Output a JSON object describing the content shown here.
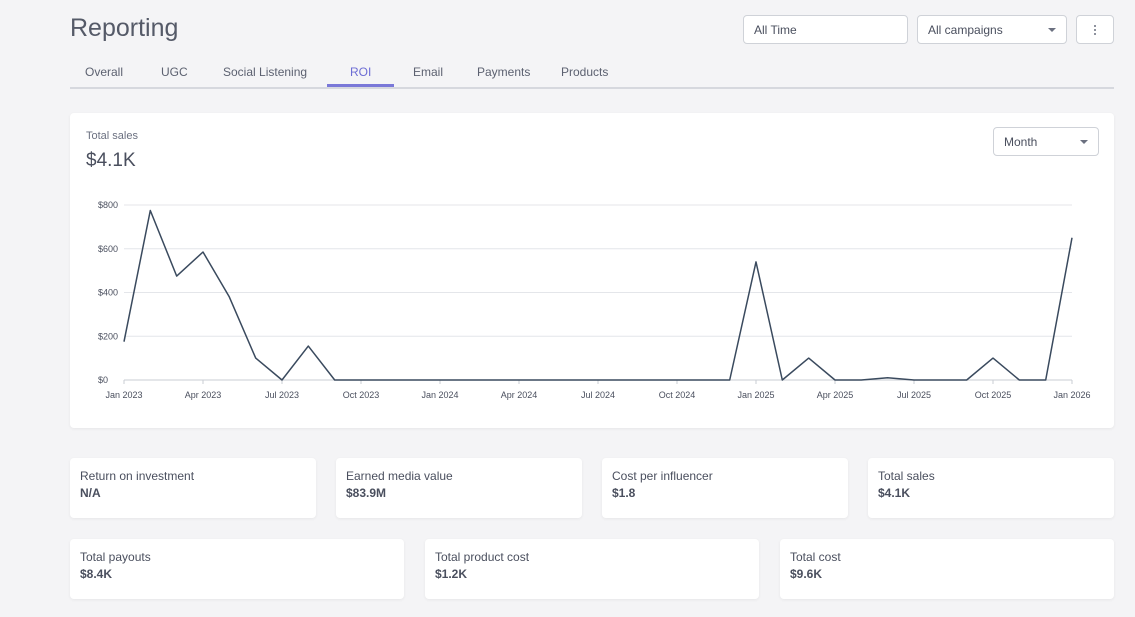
{
  "header": {
    "title": "Reporting",
    "time_filter": "All Time",
    "campaign_filter": "All campaigns",
    "more_icon": "vertical-dots-icon"
  },
  "tabs": [
    {
      "label": "Overall"
    },
    {
      "label": "UGC"
    },
    {
      "label": "Social Listening"
    },
    {
      "label": "ROI",
      "active": true
    },
    {
      "label": "Email"
    },
    {
      "label": "Payments"
    },
    {
      "label": "Products"
    }
  ],
  "colors": {
    "accent": "#7a78d8",
    "line": "#3a4a5e",
    "grid": "#e4e6ea"
  },
  "chart_card": {
    "label": "Total sales",
    "value": "$4.1K",
    "period": "Month"
  },
  "chart_data": {
    "type": "line",
    "title": "",
    "xlabel": "",
    "ylabel": "",
    "ylim": [
      0,
      800
    ],
    "grid": true,
    "yticks": [
      "$0",
      "$200",
      "$400",
      "$600",
      "$800"
    ],
    "ytick_values": [
      0,
      200,
      400,
      600,
      800
    ],
    "xtick_labels": [
      "Jan 2023",
      "Apr 2023",
      "Jul 2023",
      "Oct 2023",
      "Jan 2024",
      "Apr 2024",
      "Jul 2024",
      "Oct 2024",
      "Jan 2025",
      "Apr 2025",
      "Jul 2025",
      "Oct 2025",
      "Jan 2026"
    ],
    "xtick_indices": [
      0,
      3,
      6,
      9,
      12,
      15,
      18,
      21,
      24,
      27,
      30,
      33,
      36
    ],
    "series": [
      {
        "values": [
          175,
          775,
          475,
          585,
          380,
          100,
          0,
          155,
          0,
          0,
          0,
          0,
          0,
          0,
          0,
          0,
          0,
          0,
          0,
          0,
          0,
          0,
          0,
          0,
          540,
          0,
          100,
          0,
          0,
          10,
          0,
          0,
          0,
          100,
          0,
          0,
          650
        ]
      }
    ]
  },
  "metrics_row1": [
    {
      "label": "Return on investment",
      "value": "N/A"
    },
    {
      "label": "Earned media value",
      "value": "$83.9M"
    },
    {
      "label": "Cost per influencer",
      "value": "$1.8"
    },
    {
      "label": "Total sales",
      "value": "$4.1K"
    }
  ],
  "metrics_row2": [
    {
      "label": "Total payouts",
      "value": "$8.4K"
    },
    {
      "label": "Total product cost",
      "value": "$1.2K"
    },
    {
      "label": "Total cost",
      "value": "$9.6K"
    }
  ]
}
